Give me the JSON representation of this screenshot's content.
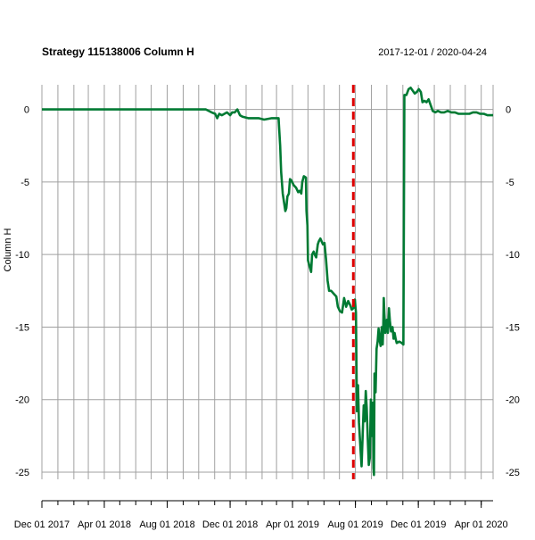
{
  "chart_data": {
    "type": "line",
    "title": "Strategy 115138006 Column H",
    "date_range_label": "2017-12-01 / 2020-04-24",
    "ylabel": "Column H",
    "xlabel": "",
    "xlim": [
      "2017-12-01",
      "2020-04-24"
    ],
    "ylim": [
      -25.8,
      1.7
    ],
    "y_ticks": [
      0,
      -5,
      -10,
      -15,
      -20,
      -25
    ],
    "x_tick_labels": [
      {
        "date": "2017-12-01",
        "label": "Dec 01 2017"
      },
      {
        "date": "2018-04-01",
        "label": "Apr 01 2018"
      },
      {
        "date": "2018-08-01",
        "label": "Aug 01 2018"
      },
      {
        "date": "2018-12-01",
        "label": "Dec 01 2018"
      },
      {
        "date": "2019-04-01",
        "label": "Apr 01 2019"
      },
      {
        "date": "2019-08-01",
        "label": "Aug 01 2019"
      },
      {
        "date": "2019-12-01",
        "label": "Dec 01 2019"
      },
      {
        "date": "2020-04-01",
        "label": "Apr 01 2020"
      }
    ],
    "grid": true,
    "legend": "none",
    "vertical_marker": {
      "date": "2019-07-28",
      "color": "#dd0000",
      "style": "dashed"
    },
    "series": [
      {
        "color": "#007a33",
        "points": [
          [
            "2017-12-01",
            0.0
          ],
          [
            "2018-10-15",
            0.0
          ],
          [
            "2018-10-26",
            -0.2
          ],
          [
            "2018-11-02",
            -0.3
          ],
          [
            "2018-11-06",
            -0.6
          ],
          [
            "2018-11-10",
            -0.3
          ],
          [
            "2018-11-15",
            -0.4
          ],
          [
            "2018-11-20",
            -0.3
          ],
          [
            "2018-11-25",
            -0.2
          ],
          [
            "2018-12-01",
            -0.4
          ],
          [
            "2018-12-05",
            -0.2
          ],
          [
            "2018-12-10",
            -0.2
          ],
          [
            "2018-12-15",
            0.0
          ],
          [
            "2018-12-20",
            -0.4
          ],
          [
            "2018-12-25",
            -0.5
          ],
          [
            "2019-01-05",
            -0.6
          ],
          [
            "2019-01-15",
            -0.6
          ],
          [
            "2019-01-25",
            -0.6
          ],
          [
            "2019-02-05",
            -0.7
          ],
          [
            "2019-02-20",
            -0.6
          ],
          [
            "2019-03-05",
            -0.6
          ],
          [
            "2019-03-08",
            -2.5
          ],
          [
            "2019-03-10",
            -4.3
          ],
          [
            "2019-03-13",
            -5.8
          ],
          [
            "2019-03-16",
            -6.5
          ],
          [
            "2019-03-18",
            -7.0
          ],
          [
            "2019-03-20",
            -6.8
          ],
          [
            "2019-03-22",
            -6.0
          ],
          [
            "2019-03-25",
            -5.8
          ],
          [
            "2019-03-27",
            -4.8
          ],
          [
            "2019-03-30",
            -4.9
          ],
          [
            "2019-04-03",
            -5.2
          ],
          [
            "2019-04-08",
            -5.4
          ],
          [
            "2019-04-12",
            -5.7
          ],
          [
            "2019-04-15",
            -5.6
          ],
          [
            "2019-04-18",
            -5.8
          ],
          [
            "2019-04-20",
            -5.0
          ],
          [
            "2019-04-23",
            -4.6
          ],
          [
            "2019-04-27",
            -4.7
          ],
          [
            "2019-04-28",
            -7.0
          ],
          [
            "2019-04-30",
            -8.0
          ],
          [
            "2019-05-01",
            -10.4
          ],
          [
            "2019-05-04",
            -10.8
          ],
          [
            "2019-05-07",
            -11.2
          ],
          [
            "2019-05-09",
            -10.0
          ],
          [
            "2019-05-12",
            -9.8
          ],
          [
            "2019-05-14",
            -10.0
          ],
          [
            "2019-05-17",
            -10.2
          ],
          [
            "2019-05-20",
            -9.3
          ],
          [
            "2019-05-22",
            -9.1
          ],
          [
            "2019-05-25",
            -8.9
          ],
          [
            "2019-05-30",
            -9.3
          ],
          [
            "2019-06-02",
            -9.2
          ],
          [
            "2019-06-05",
            -10.3
          ],
          [
            "2019-06-08",
            -11.8
          ],
          [
            "2019-06-11",
            -12.5
          ],
          [
            "2019-06-15",
            -12.5
          ],
          [
            "2019-06-20",
            -12.7
          ],
          [
            "2019-06-25",
            -12.9
          ],
          [
            "2019-06-28",
            -13.6
          ],
          [
            "2019-07-02",
            -13.9
          ],
          [
            "2019-07-06",
            -14.0
          ],
          [
            "2019-07-10",
            -13.0
          ],
          [
            "2019-07-14",
            -13.6
          ],
          [
            "2019-07-18",
            -13.2
          ],
          [
            "2019-07-22",
            -13.5
          ],
          [
            "2019-07-25",
            -13.8
          ],
          [
            "2019-07-28",
            -13.7
          ],
          [
            "2019-07-31",
            -13.1
          ],
          [
            "2019-08-02",
            -14.0
          ],
          [
            "2019-08-04",
            -20.8
          ],
          [
            "2019-08-06",
            -19.0
          ],
          [
            "2019-08-08",
            -21.6
          ],
          [
            "2019-08-11",
            -23.5
          ],
          [
            "2019-08-13",
            -24.6
          ],
          [
            "2019-08-15",
            -22.5
          ],
          [
            "2019-08-17",
            -20.4
          ],
          [
            "2019-08-19",
            -21.5
          ],
          [
            "2019-08-21",
            -19.4
          ],
          [
            "2019-08-23",
            -20.6
          ],
          [
            "2019-08-25",
            -22.8
          ],
          [
            "2019-08-27",
            -24.5
          ],
          [
            "2019-08-29",
            -24.0
          ],
          [
            "2019-08-31",
            -20.0
          ],
          [
            "2019-09-02",
            -22.5
          ],
          [
            "2019-09-04",
            -20.2
          ],
          [
            "2019-09-05",
            -24.7
          ],
          [
            "2019-09-06",
            -25.2
          ],
          [
            "2019-09-07",
            -18.2
          ],
          [
            "2019-09-09",
            -19.5
          ],
          [
            "2019-09-11",
            -16.5
          ],
          [
            "2019-09-13",
            -16.0
          ],
          [
            "2019-09-15",
            -15.1
          ],
          [
            "2019-09-17",
            -15.9
          ],
          [
            "2019-09-19",
            -16.3
          ],
          [
            "2019-09-21",
            -15.0
          ],
          [
            "2019-09-23",
            -16.2
          ],
          [
            "2019-09-24",
            -15.0
          ],
          [
            "2019-09-25",
            -13.0
          ],
          [
            "2019-09-26",
            -14.0
          ],
          [
            "2019-09-28",
            -15.4
          ],
          [
            "2019-10-01",
            -14.5
          ],
          [
            "2019-10-03",
            -15.4
          ],
          [
            "2019-10-05",
            -13.7
          ],
          [
            "2019-10-07",
            -14.6
          ],
          [
            "2019-10-09",
            -15.3
          ],
          [
            "2019-10-12",
            -15.0
          ],
          [
            "2019-10-14",
            -15.8
          ],
          [
            "2019-10-16",
            -15.4
          ],
          [
            "2019-10-18",
            -15.8
          ],
          [
            "2019-10-20",
            -16.1
          ],
          [
            "2019-10-25",
            -16.0
          ],
          [
            "2019-10-30",
            -16.1
          ],
          [
            "2019-11-02",
            -16.2
          ],
          [
            "2019-11-04",
            1.0
          ],
          [
            "2019-11-08",
            1.0
          ],
          [
            "2019-11-12",
            1.4
          ],
          [
            "2019-11-16",
            1.5
          ],
          [
            "2019-11-20",
            1.3
          ],
          [
            "2019-11-24",
            1.1
          ],
          [
            "2019-11-28",
            1.2
          ],
          [
            "2019-12-02",
            1.4
          ],
          [
            "2019-12-06",
            1.2
          ],
          [
            "2019-12-09",
            0.5
          ],
          [
            "2019-12-13",
            0.6
          ],
          [
            "2019-12-17",
            0.5
          ],
          [
            "2019-12-21",
            0.7
          ],
          [
            "2019-12-25",
            0.3
          ],
          [
            "2019-12-29",
            -0.1
          ],
          [
            "2020-01-03",
            -0.2
          ],
          [
            "2020-01-08",
            -0.1
          ],
          [
            "2020-01-14",
            -0.2
          ],
          [
            "2020-01-20",
            -0.2
          ],
          [
            "2020-01-27",
            -0.1
          ],
          [
            "2020-02-03",
            -0.2
          ],
          [
            "2020-02-10",
            -0.2
          ],
          [
            "2020-02-17",
            -0.3
          ],
          [
            "2020-02-24",
            -0.3
          ],
          [
            "2020-03-02",
            -0.3
          ],
          [
            "2020-03-09",
            -0.3
          ],
          [
            "2020-03-16",
            -0.2
          ],
          [
            "2020-03-23",
            -0.2
          ],
          [
            "2020-03-30",
            -0.3
          ],
          [
            "2020-04-06",
            -0.3
          ],
          [
            "2020-04-13",
            -0.4
          ],
          [
            "2020-04-24",
            -0.4
          ]
        ]
      }
    ]
  }
}
